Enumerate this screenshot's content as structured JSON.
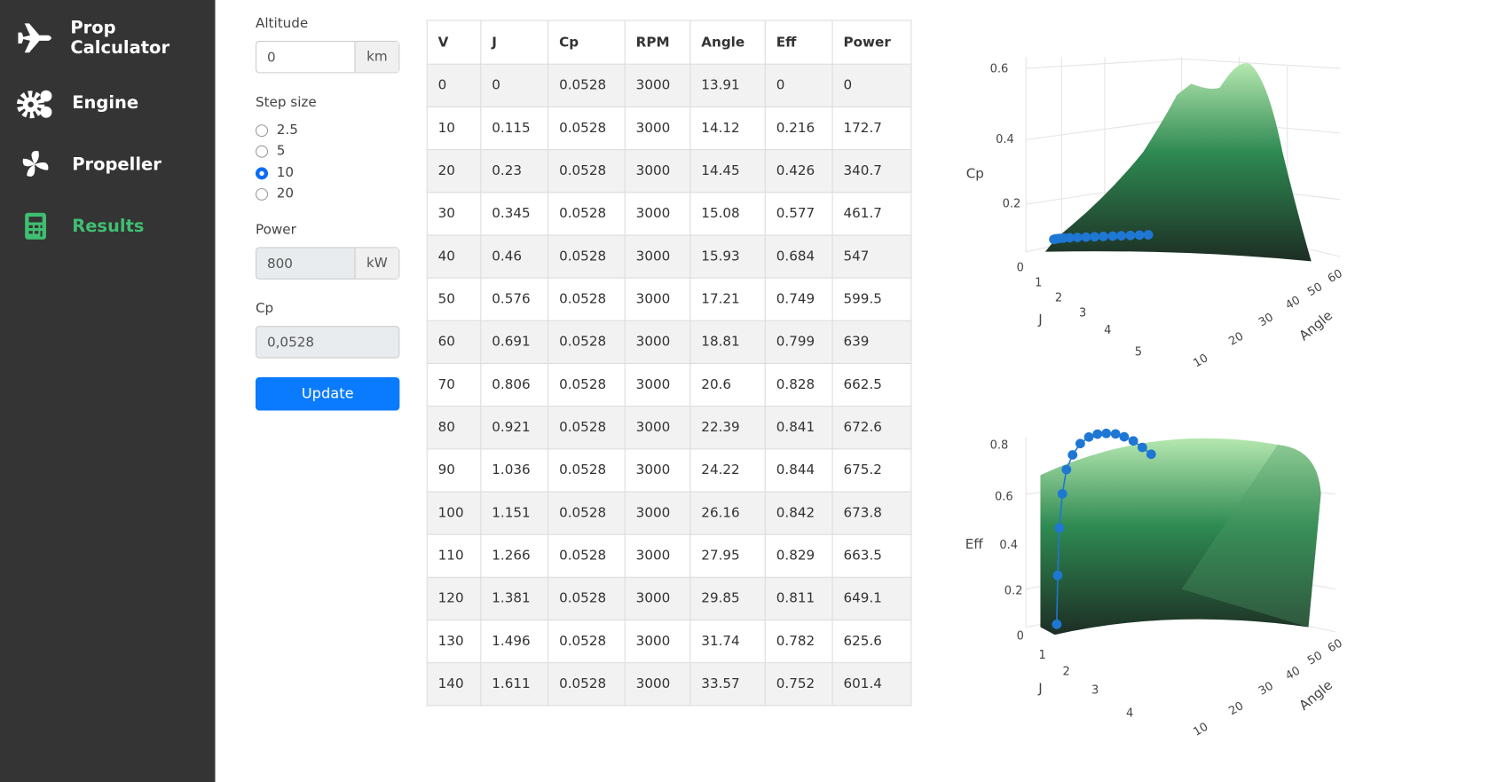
{
  "sidebar": {
    "items": [
      "Prop Calculator",
      "Engine",
      "Propeller",
      "Results"
    ]
  },
  "form": {
    "altitude_label": "Altitude",
    "altitude_value": "0",
    "altitude_unit": "km",
    "step_label": "Step size",
    "step_options": [
      "2.5",
      "5",
      "10",
      "20"
    ],
    "power_label": "Power",
    "power_value": "800",
    "power_unit": "kW",
    "cp_label": "Cp",
    "cp_value": "0,0528",
    "button": "Update"
  },
  "table": {
    "headers": [
      "V",
      "J",
      "Cp",
      "RPM",
      "Angle",
      "Eff",
      "Power"
    ],
    "rows": [
      [
        0,
        0,
        0.0528,
        3000,
        13.91,
        0,
        0
      ],
      [
        10,
        0.115,
        0.0528,
        3000,
        14.12,
        0.216,
        172.7
      ],
      [
        20,
        0.23,
        0.0528,
        3000,
        14.45,
        0.426,
        340.7
      ],
      [
        30,
        0.345,
        0.0528,
        3000,
        15.08,
        0.577,
        461.7
      ],
      [
        40,
        0.46,
        0.0528,
        3000,
        15.93,
        0.684,
        547
      ],
      [
        50,
        0.576,
        0.0528,
        3000,
        17.21,
        0.749,
        599.5
      ],
      [
        60,
        0.691,
        0.0528,
        3000,
        18.81,
        0.799,
        639
      ],
      [
        70,
        0.806,
        0.0528,
        3000,
        20.6,
        0.828,
        662.5
      ],
      [
        80,
        0.921,
        0.0528,
        3000,
        22.39,
        0.841,
        672.6
      ],
      [
        90,
        1.036,
        0.0528,
        3000,
        24.22,
        0.844,
        675.2
      ],
      [
        100,
        1.151,
        0.0528,
        3000,
        26.16,
        0.842,
        673.8
      ],
      [
        110,
        1.266,
        0.0528,
        3000,
        27.95,
        0.829,
        663.5
      ],
      [
        120,
        1.381,
        0.0528,
        3000,
        29.85,
        0.811,
        649.1
      ],
      [
        130,
        1.496,
        0.0528,
        3000,
        31.74,
        0.782,
        625.6
      ],
      [
        140,
        1.611,
        0.0528,
        3000,
        33.57,
        0.752,
        601.4
      ]
    ]
  },
  "plots": [
    {
      "z_title": "Cp",
      "z_ticks": [
        "0",
        "0.2",
        "0.4",
        "0.6"
      ],
      "x_title": "J",
      "x_ticks": [
        "1",
        "2",
        "3",
        "4",
        "5"
      ],
      "y_title": "Angle",
      "y_ticks": [
        "10",
        "20",
        "30",
        "40",
        "50",
        "60"
      ]
    },
    {
      "z_title": "Eff",
      "z_ticks": [
        "0",
        "0.2",
        "0.4",
        "0.6",
        "0.8"
      ],
      "x_title": "J",
      "x_ticks": [
        "1",
        "2",
        "3",
        "4"
      ],
      "y_title": "Angle",
      "y_ticks": [
        "10",
        "20",
        "30",
        "40",
        "50",
        "60"
      ]
    }
  ]
}
